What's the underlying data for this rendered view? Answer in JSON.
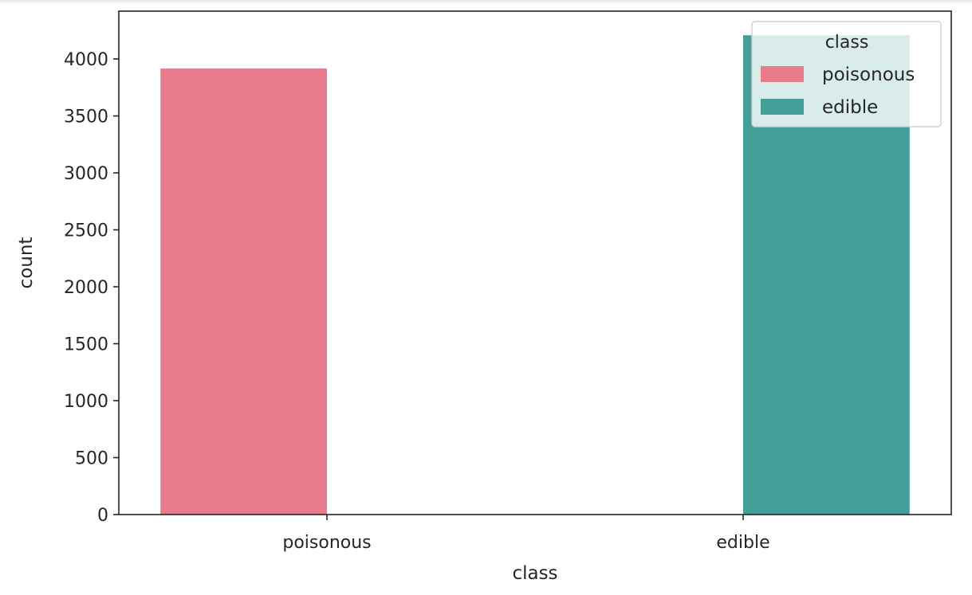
{
  "chart_data": {
    "type": "bar",
    "categories": [
      "poisonous",
      "edible"
    ],
    "hue": "class",
    "series": [
      {
        "name": "poisonous",
        "color": "#e77c8d",
        "values": [
          3916,
          0
        ]
      },
      {
        "name": "edible",
        "color": "#449e98",
        "values": [
          0,
          4208
        ]
      }
    ],
    "xlabel": "class",
    "ylabel": "count",
    "ylim": [
      0,
      4420
    ],
    "yticks": [
      0,
      500,
      1000,
      1500,
      2000,
      2500,
      3000,
      3500,
      4000
    ],
    "grid": false,
    "legend": {
      "title": "class",
      "placement": "top-right",
      "entries": [
        "poisonous",
        "edible"
      ]
    }
  }
}
